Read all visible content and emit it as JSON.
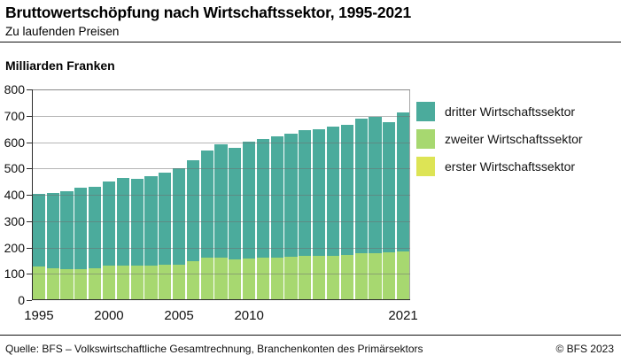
{
  "header": {
    "title": "Bruttowertschöpfung nach Wirtschaftssektor, 1995-2021",
    "subtitle": "Zu laufenden Preisen"
  },
  "y_axis": {
    "label": "Milliarden Franken"
  },
  "legend": {
    "items": [
      {
        "key": "dritter",
        "label": "dritter Wirtschaftssektor",
        "color": "#4bab9c"
      },
      {
        "key": "zweiter",
        "label": "zweiter Wirtschaftssektor",
        "color": "#a7d870"
      },
      {
        "key": "erster",
        "label": "erster Wirtschaftssektor",
        "color": "#dde455"
      }
    ]
  },
  "footer": {
    "source": "Quelle: BFS – Volkswirtschaftliche Gesamtrechnung, Branchenkonten des Primärsektors",
    "copyright": "© BFS 2023"
  },
  "chart_data": {
    "type": "bar",
    "stacked": true,
    "title": "Bruttowertschöpfung nach Wirtschaftssektor, 1995-2021",
    "subtitle": "Zu laufenden Preisen",
    "ylabel": "Milliarden Franken",
    "ylim": [
      0,
      800
    ],
    "yticks": [
      0,
      100,
      200,
      300,
      400,
      500,
      600,
      700,
      800
    ],
    "grid": true,
    "legend_position": "right",
    "categories": [
      1995,
      1996,
      1997,
      1998,
      1999,
      2000,
      2001,
      2002,
      2003,
      2004,
      2005,
      2006,
      2007,
      2008,
      2009,
      2010,
      2011,
      2012,
      2013,
      2014,
      2015,
      2016,
      2017,
      2018,
      2019,
      2020,
      2021
    ],
    "xtick_labels": [
      {
        "index": 0,
        "label": "1995"
      },
      {
        "index": 5,
        "label": "2000"
      },
      {
        "index": 10,
        "label": "2005"
      },
      {
        "index": 15,
        "label": "2010"
      },
      {
        "index": 26,
        "label": "2021"
      }
    ],
    "series": [
      {
        "name": "erster Wirtschaftssektor",
        "color": "#dde455",
        "values": [
          4,
          4,
          4,
          4,
          4,
          4,
          4,
          4,
          4,
          4,
          4,
          4,
          4,
          4,
          4,
          4,
          4,
          4,
          4,
          4,
          4,
          4,
          4,
          4,
          4,
          4,
          4
        ]
      },
      {
        "name": "zweiter Wirtschaftssektor",
        "color": "#a7d870",
        "values": [
          123,
          117,
          115,
          115,
          116,
          126,
          128,
          126,
          127,
          130,
          132,
          143,
          158,
          156,
          150,
          155,
          159,
          159,
          160,
          163,
          163,
          164,
          167,
          174,
          173,
          177,
          180
        ]
      },
      {
        "name": "dritter Wirtschaftssektor",
        "color": "#4bab9c",
        "values": [
          277,
          287,
          296,
          307,
          311,
          321,
          331,
          331,
          339,
          350,
          365,
          385,
          405,
          432,
          425,
          442,
          450,
          459,
          469,
          478,
          483,
          491,
          493,
          512,
          520,
          496,
          527
        ]
      }
    ]
  }
}
